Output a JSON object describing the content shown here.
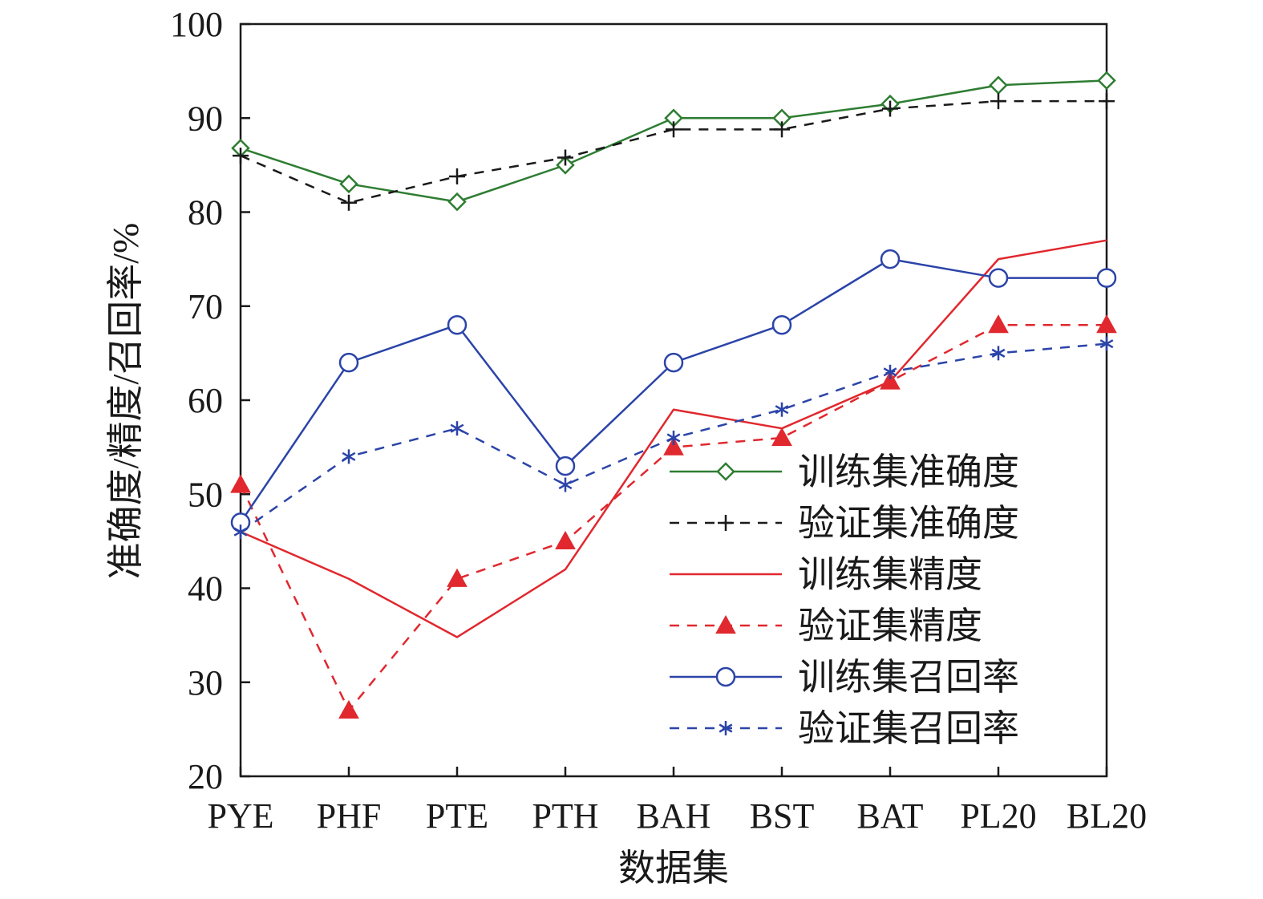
{
  "chart_data": {
    "type": "line",
    "xlabel": "数据集",
    "ylabel": "准确度/精度/召回率/%",
    "ylim": [
      20,
      100
    ],
    "yticks": [
      20,
      30,
      40,
      50,
      60,
      70,
      80,
      90,
      100
    ],
    "categories": [
      "PYE",
      "PHF",
      "PTE",
      "PTH",
      "BAH",
      "BST",
      "BAT",
      "PL20",
      "BL20"
    ],
    "grid": false,
    "legend_position": "bottom-right",
    "series": [
      {
        "name": "训练集准确度",
        "color": "#2e7d32",
        "dash": "solid",
        "marker": "diamond",
        "values": [
          86.8,
          83.0,
          81.1,
          85.0,
          90.0,
          90.0,
          91.5,
          93.5,
          94.0
        ]
      },
      {
        "name": "验证集准确度",
        "color": "#1a1a1a",
        "dash": "dashed",
        "marker": "plus",
        "values": [
          86.0,
          81.0,
          83.8,
          85.8,
          88.8,
          88.8,
          91.0,
          91.8,
          91.8
        ]
      },
      {
        "name": "训练集精度",
        "color": "#e0282e",
        "dash": "solid",
        "marker": "none",
        "values": [
          46.0,
          41.0,
          34.8,
          42.0,
          59.0,
          57.0,
          62.0,
          75.0,
          77.0
        ]
      },
      {
        "name": "验证集精度",
        "color": "#e0282e",
        "dash": "dashed",
        "marker": "triangle",
        "values": [
          51.0,
          27.0,
          41.0,
          45.0,
          55.0,
          56.0,
          62.0,
          68.0,
          68.0
        ]
      },
      {
        "name": "训练集召回率",
        "color": "#2b44a8",
        "dash": "solid",
        "marker": "circle",
        "values": [
          47.0,
          64.0,
          68.0,
          53.0,
          64.0,
          68.0,
          75.0,
          73.0,
          73.0
        ]
      },
      {
        "name": "验证集召回率",
        "color": "#2b44a8",
        "dash": "dashed",
        "marker": "asterisk",
        "values": [
          46.0,
          54.0,
          57.0,
          51.0,
          56.0,
          59.0,
          63.0,
          65.0,
          66.0
        ]
      }
    ]
  }
}
